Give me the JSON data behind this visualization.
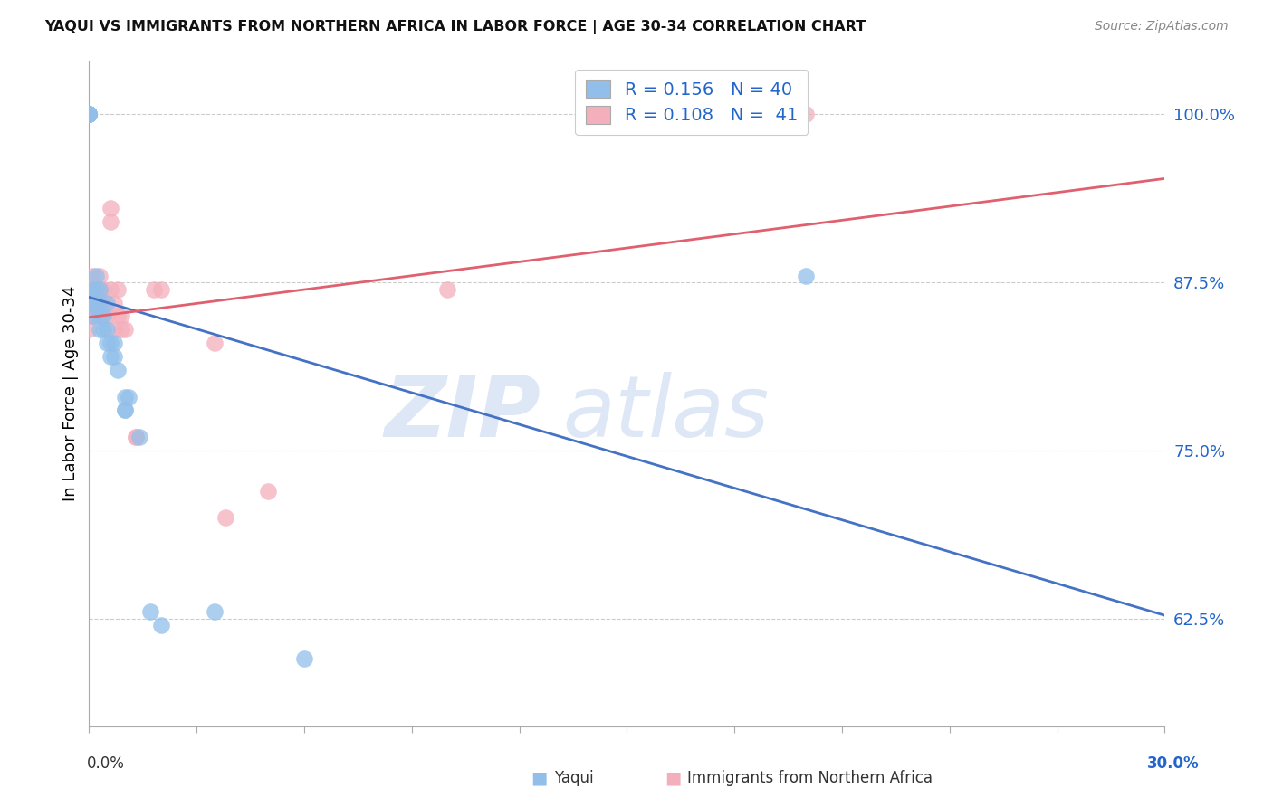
{
  "title": "YAQUI VS IMMIGRANTS FROM NORTHERN AFRICA IN LABOR FORCE | AGE 30-34 CORRELATION CHART",
  "source": "Source: ZipAtlas.com",
  "ylabel": "In Labor Force | Age 30-34",
  "ytick_vals": [
    0.625,
    0.75,
    0.875,
    1.0
  ],
  "ytick_labels": [
    "62.5%",
    "75.0%",
    "87.5%",
    "100.0%"
  ],
  "xlim": [
    0.0,
    0.3
  ],
  "ylim": [
    0.545,
    1.04
  ],
  "r_yaqui": "0.156",
  "n_yaqui": "40",
  "r_nafr": "0.108",
  "n_nafr": "41",
  "blue_scatter": "#92BFEA",
  "pink_scatter": "#F4AFBC",
  "blue_line": "#4472C4",
  "pink_line": "#E06070",
  "legend_label1": "Yaqui",
  "legend_label2": "Immigrants from Northern Africa",
  "watermark_zip": "ZIP",
  "watermark_atlas": "atlas",
  "yaqui_x": [
    0.0,
    0.0,
    0.0,
    0.0,
    0.0,
    0.0,
    0.0,
    0.0,
    0.0,
    0.0,
    0.001,
    0.001,
    0.001,
    0.002,
    0.002,
    0.002,
    0.003,
    0.003,
    0.003,
    0.003,
    0.004,
    0.004,
    0.005,
    0.005,
    0.005,
    0.006,
    0.006,
    0.007,
    0.007,
    0.008,
    0.01,
    0.01,
    0.01,
    0.011,
    0.014,
    0.017,
    0.02,
    0.035,
    0.06,
    0.2
  ],
  "yaqui_y": [
    1.0,
    1.0,
    1.0,
    1.0,
    1.0,
    1.0,
    1.0,
    1.0,
    1.0,
    1.0,
    0.87,
    0.86,
    0.85,
    0.88,
    0.87,
    0.86,
    0.87,
    0.86,
    0.85,
    0.84,
    0.85,
    0.84,
    0.86,
    0.84,
    0.83,
    0.83,
    0.82,
    0.83,
    0.82,
    0.81,
    0.79,
    0.78,
    0.78,
    0.79,
    0.76,
    0.63,
    0.62,
    0.63,
    0.595,
    0.88
  ],
  "nafr_x": [
    0.0,
    0.0,
    0.0,
    0.0,
    0.0,
    0.0,
    0.001,
    0.001,
    0.001,
    0.001,
    0.002,
    0.002,
    0.002,
    0.002,
    0.003,
    0.003,
    0.003,
    0.003,
    0.004,
    0.004,
    0.004,
    0.005,
    0.006,
    0.006,
    0.006,
    0.007,
    0.007,
    0.008,
    0.008,
    0.009,
    0.009,
    0.01,
    0.013,
    0.013,
    0.018,
    0.02,
    0.035,
    0.038,
    0.05,
    0.1,
    0.2
  ],
  "nafr_y": [
    0.87,
    0.87,
    0.86,
    0.86,
    0.85,
    0.84,
    0.88,
    0.87,
    0.86,
    0.85,
    0.87,
    0.87,
    0.86,
    0.85,
    0.88,
    0.87,
    0.87,
    0.86,
    0.87,
    0.86,
    0.85,
    0.85,
    0.93,
    0.92,
    0.87,
    0.86,
    0.84,
    0.87,
    0.85,
    0.85,
    0.84,
    0.84,
    0.76,
    0.76,
    0.87,
    0.87,
    0.83,
    0.7,
    0.72,
    0.87,
    1.0
  ]
}
